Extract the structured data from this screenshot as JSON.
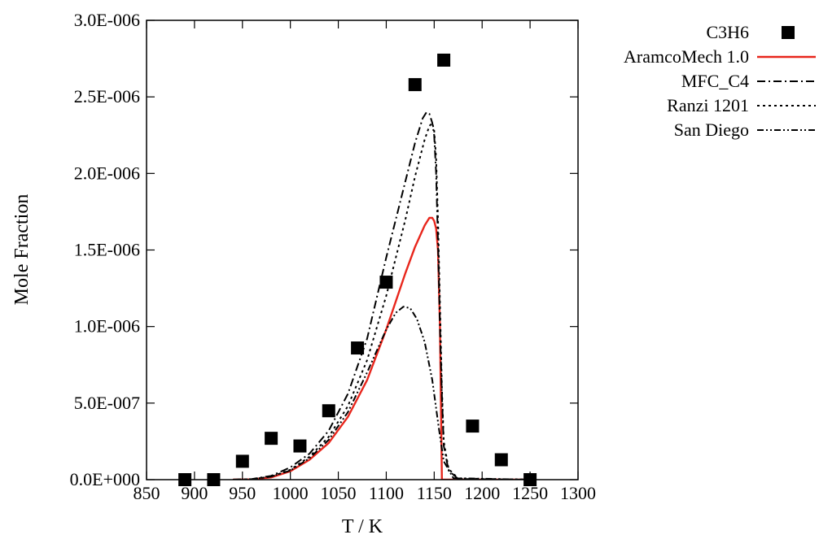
{
  "chart_data": {
    "type": "line",
    "title": "",
    "xlabel": "T / K",
    "ylabel": "Mole Fraction",
    "xlim": [
      850,
      1300
    ],
    "ylim": [
      0,
      3e-06
    ],
    "grid": false,
    "legend_position": "outside-right",
    "x_ticks": [
      850,
      900,
      950,
      1000,
      1050,
      1100,
      1150,
      1200,
      1250,
      1300
    ],
    "x_tick_labels": [
      "850",
      "900",
      "950",
      "1000",
      "1050",
      "1100",
      "1150",
      "1200",
      "1250",
      "1300"
    ],
    "y_ticks": [
      0,
      5e-07,
      1e-06,
      1.5e-06,
      2e-06,
      2.5e-06,
      3e-06
    ],
    "y_tick_labels": [
      "0.0E+000",
      "5.0E-007",
      "1.0E-006",
      "1.5E-006",
      "2.0E-006",
      "2.5E-006",
      "3.0E-006"
    ],
    "series": [
      {
        "name": "C3H6",
        "kind": "scatter",
        "color": "#000000",
        "x": [
          890,
          920,
          950,
          980,
          1010,
          1040,
          1070,
          1100,
          1130,
          1160,
          1190,
          1220,
          1250
        ],
        "y": [
          0,
          0,
          1.2e-07,
          2.7e-07,
          2.2e-07,
          4.5e-07,
          8.6e-07,
          1.29e-06,
          2.58e-06,
          2.74e-06,
          3.5e-07,
          1.3e-07,
          0
        ]
      },
      {
        "name": "AramcoMech 1.0",
        "kind": "line",
        "color": "#e8261c",
        "dash": "",
        "x": [
          940,
          960,
          980,
          1000,
          1020,
          1040,
          1060,
          1080,
          1100,
          1120,
          1130,
          1140,
          1145,
          1148,
          1150,
          1152,
          1154,
          1156,
          1157,
          1158,
          1160,
          1180,
          1250
        ],
        "y": [
          0,
          2e-09,
          1.5e-08,
          5.5e-08,
          1.3e-07,
          2.4e-07,
          4.1e-07,
          6.5e-07,
          9.8e-07,
          1.35e-06,
          1.52e-06,
          1.66e-06,
          1.71e-06,
          1.71e-06,
          1.69e-06,
          1.64e-06,
          1.5e-06,
          1e-06,
          5e-07,
          0,
          0,
          0,
          0
        ]
      },
      {
        "name": "MFC_C4",
        "kind": "line",
        "color": "#000000",
        "dash": "10,4,2,4",
        "x": [
          940,
          960,
          980,
          1000,
          1020,
          1040,
          1060,
          1080,
          1100,
          1120,
          1130,
          1138,
          1142,
          1145,
          1148,
          1150,
          1152,
          1154,
          1156,
          1158,
          1160,
          1165,
          1175,
          1250
        ],
        "y": [
          0,
          4e-09,
          2.5e-08,
          8e-08,
          1.7e-07,
          3.2e-07,
          5.6e-07,
          9.2e-07,
          1.45e-06,
          1.95e-06,
          2.2e-06,
          2.36e-06,
          2.4e-06,
          2.39e-06,
          2.33e-06,
          2.25e-06,
          2e-06,
          1.55e-06,
          1e-06,
          5.5e-07,
          2.2e-07,
          6e-08,
          5e-09,
          0
        ]
      },
      {
        "name": "Ranzi 1201",
        "kind": "line",
        "color": "#000000",
        "dash": "3,4",
        "x": [
          940,
          960,
          980,
          1000,
          1020,
          1040,
          1060,
          1080,
          1100,
          1120,
          1130,
          1140,
          1145,
          1148,
          1150,
          1152,
          1154,
          1156,
          1158,
          1160,
          1165,
          1175,
          1250
        ],
        "y": [
          0,
          3e-09,
          2e-08,
          6.5e-08,
          1.5e-07,
          2.8e-07,
          4.8e-07,
          7.8e-07,
          1.2e-06,
          1.7e-06,
          1.98e-06,
          2.22e-06,
          2.31e-06,
          2.33e-06,
          2.28e-06,
          2.1e-06,
          1.7e-06,
          1.15e-06,
          6e-07,
          2.5e-07,
          7e-08,
          8e-09,
          0
        ]
      },
      {
        "name": "San Diego",
        "kind": "line",
        "color": "#000000",
        "dash": "8,3,2,3,2,3",
        "x": [
          940,
          960,
          980,
          1000,
          1020,
          1040,
          1060,
          1080,
          1100,
          1110,
          1118,
          1125,
          1132,
          1140,
          1148,
          1155,
          1160,
          1170,
          1250
        ],
        "y": [
          0,
          3e-09,
          2e-08,
          6e-08,
          1.4e-07,
          2.6e-07,
          4.4e-07,
          7e-07,
          9.8e-07,
          1.09e-06,
          1.13e-06,
          1.12e-06,
          1.05e-06,
          9e-07,
          6.5e-07,
          3.3e-07,
          1.2e-07,
          1e-08,
          0
        ]
      }
    ]
  }
}
